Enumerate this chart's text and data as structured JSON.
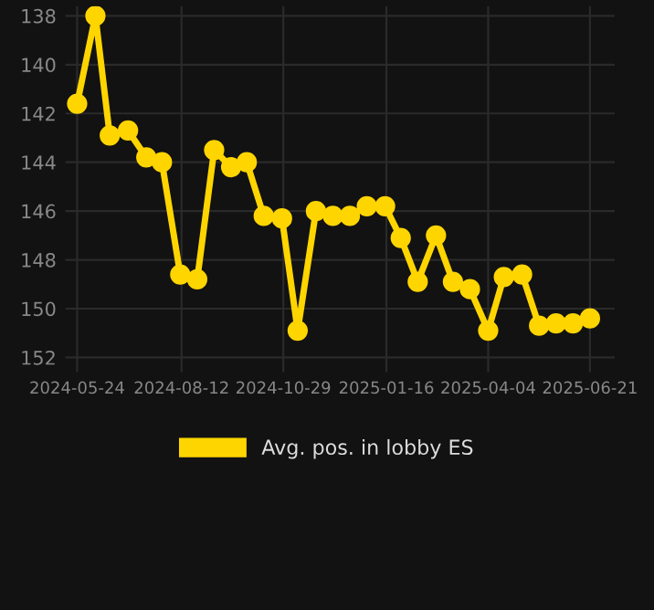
{
  "chart_data": {
    "type": "line",
    "x": [
      "2024-05-24",
      "2024-06-07",
      "2024-06-18",
      "2024-07-02",
      "2024-07-16",
      "2024-07-28",
      "2024-08-11",
      "2024-08-24",
      "2024-09-06",
      "2024-09-19",
      "2024-10-01",
      "2024-10-14",
      "2024-10-28",
      "2024-11-09",
      "2024-11-23",
      "2024-12-06",
      "2024-12-19",
      "2025-01-01",
      "2025-01-15",
      "2025-01-27",
      "2025-02-09",
      "2025-02-23",
      "2025-03-08",
      "2025-03-21",
      "2025-04-04",
      "2025-04-16",
      "2025-04-30",
      "2025-05-13",
      "2025-05-26",
      "2025-06-08",
      "2025-06-21"
    ],
    "series": [
      {
        "name": "Avg. pos. in lobby ES",
        "color": "#ffd500",
        "values": [
          141.6,
          138.0,
          142.9,
          142.7,
          143.8,
          144.0,
          148.6,
          148.8,
          143.5,
          144.2,
          144.0,
          146.2,
          146.3,
          150.9,
          146.0,
          146.2,
          146.2,
          145.8,
          145.8,
          147.1,
          148.9,
          147.0,
          148.9,
          149.2,
          150.9,
          148.7,
          148.6,
          150.7,
          150.6,
          150.6,
          150.4
        ]
      }
    ],
    "xlim": [
      "2024-05-15",
      "2025-07-10"
    ],
    "xticks": [
      "2024-05-24",
      "2024-08-12",
      "2024-10-29",
      "2025-01-16",
      "2025-04-04",
      "2025-06-21"
    ],
    "ylim": [
      152.6,
      137.6
    ],
    "yticks": [
      138,
      140,
      142,
      144,
      146,
      148,
      150,
      152
    ],
    "grid": true,
    "legend": "bottom",
    "marker": "circle",
    "line_style": "solid"
  }
}
